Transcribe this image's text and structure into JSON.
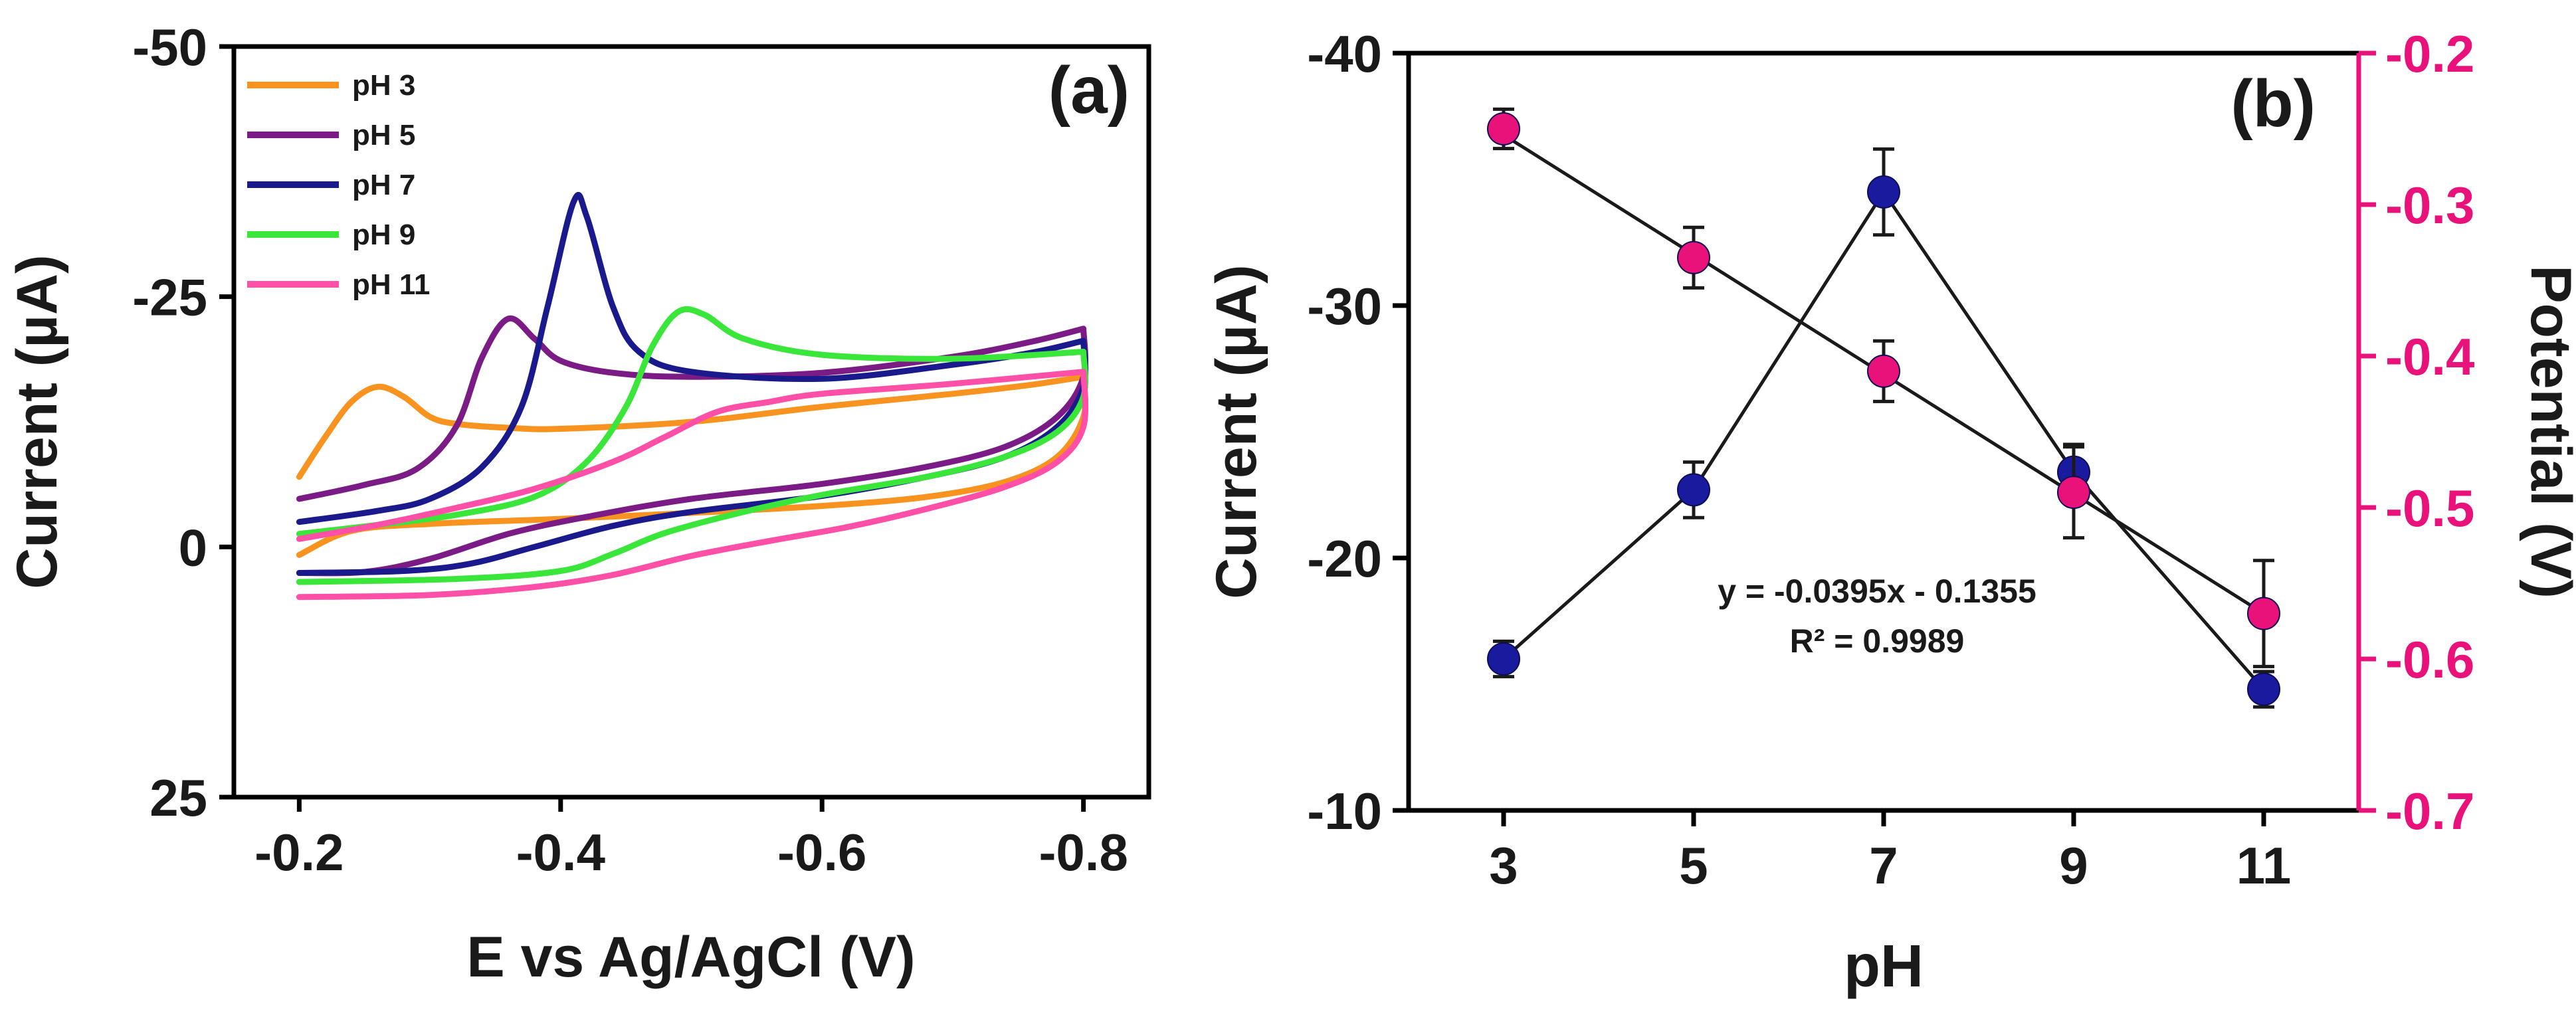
{
  "chart_data": [
    {
      "panel_label": "(a)",
      "type": "line",
      "xlabel": "E vs Ag/AgCl (V)",
      "ylabel": "Current (µA)",
      "xlim": [
        -0.15,
        -0.85
      ],
      "ylim": [
        25,
        -50
      ],
      "x_ticks": [
        "-0.2",
        "-0.4",
        "-0.6",
        "-0.8"
      ],
      "x_tick_values": [
        -0.2,
        -0.4,
        -0.6,
        -0.8
      ],
      "y_ticks": [
        "-50",
        "-25",
        "0",
        "25"
      ],
      "y_tick_values": [
        -50,
        -25,
        0,
        25
      ],
      "legend_position": "top-left",
      "series": [
        {
          "name": "pH 3",
          "color": "#F7931E",
          "forward": [
            [
              -0.2,
              -7
            ],
            [
              -0.22,
              -11
            ],
            [
              -0.24,
              -14.5
            ],
            [
              -0.26,
              -16
            ],
            [
              -0.28,
              -15
            ],
            [
              -0.3,
              -13
            ],
            [
              -0.32,
              -12.3
            ],
            [
              -0.36,
              -11.9
            ],
            [
              -0.4,
              -11.8
            ],
            [
              -0.5,
              -12.5
            ],
            [
              -0.6,
              -14
            ],
            [
              -0.7,
              -15.3
            ],
            [
              -0.76,
              -16.2
            ],
            [
              -0.8,
              -17
            ]
          ],
          "reverse": [
            [
              -0.8,
              -17
            ],
            [
              -0.8,
              -13
            ],
            [
              -0.78,
              -9
            ],
            [
              -0.74,
              -6.5
            ],
            [
              -0.68,
              -5
            ],
            [
              -0.6,
              -4.1
            ],
            [
              -0.5,
              -3.4
            ],
            [
              -0.4,
              -2.8
            ],
            [
              -0.3,
              -2.3
            ],
            [
              -0.24,
              -1.6
            ],
            [
              -0.2,
              0.8
            ]
          ]
        },
        {
          "name": "pH 5",
          "color": "#7B1C86",
          "forward": [
            [
              -0.2,
              -4.8
            ],
            [
              -0.25,
              -6.2
            ],
            [
              -0.29,
              -7.8
            ],
            [
              -0.32,
              -12
            ],
            [
              -0.34,
              -19
            ],
            [
              -0.36,
              -22.8
            ],
            [
              -0.38,
              -20.8
            ],
            [
              -0.4,
              -18.6
            ],
            [
              -0.44,
              -17.4
            ],
            [
              -0.5,
              -17
            ],
            [
              -0.6,
              -17.4
            ],
            [
              -0.7,
              -19
            ],
            [
              -0.76,
              -20.5
            ],
            [
              -0.8,
              -21.8
            ]
          ],
          "reverse": [
            [
              -0.8,
              -21.8
            ],
            [
              -0.8,
              -17
            ],
            [
              -0.78,
              -13
            ],
            [
              -0.74,
              -10
            ],
            [
              -0.68,
              -8
            ],
            [
              -0.6,
              -6.3
            ],
            [
              -0.5,
              -4.8
            ],
            [
              -0.42,
              -3
            ],
            [
              -0.36,
              -1.3
            ],
            [
              -0.3,
              1.2
            ],
            [
              -0.25,
              2.5
            ],
            [
              -0.2,
              2.6
            ]
          ]
        },
        {
          "name": "pH 7",
          "color": "#1A1A8C",
          "forward": [
            [
              -0.2,
              -2.5
            ],
            [
              -0.26,
              -3.6
            ],
            [
              -0.3,
              -4.8
            ],
            [
              -0.34,
              -8
            ],
            [
              -0.37,
              -14
            ],
            [
              -0.39,
              -24
            ],
            [
              -0.41,
              -34.5
            ],
            [
              -0.42,
              -33
            ],
            [
              -0.44,
              -24
            ],
            [
              -0.46,
              -19.5
            ],
            [
              -0.5,
              -17.5
            ],
            [
              -0.6,
              -16.8
            ],
            [
              -0.7,
              -18.2
            ],
            [
              -0.76,
              -19.4
            ],
            [
              -0.8,
              -20.6
            ]
          ],
          "reverse": [
            [
              -0.8,
              -20.6
            ],
            [
              -0.8,
              -16
            ],
            [
              -0.78,
              -12
            ],
            [
              -0.74,
              -9
            ],
            [
              -0.68,
              -7
            ],
            [
              -0.6,
              -5.1
            ],
            [
              -0.5,
              -3.5
            ],
            [
              -0.44,
              -2.1
            ],
            [
              -0.38,
              0
            ],
            [
              -0.33,
              1.7
            ],
            [
              -0.28,
              2.4
            ],
            [
              -0.2,
              2.6
            ]
          ]
        },
        {
          "name": "pH 9",
          "color": "#39E639",
          "forward": [
            [
              -0.2,
              -1.3
            ],
            [
              -0.26,
              -2.2
            ],
            [
              -0.32,
              -3.2
            ],
            [
              -0.38,
              -5
            ],
            [
              -0.42,
              -8.5
            ],
            [
              -0.45,
              -14
            ],
            [
              -0.47,
              -20
            ],
            [
              -0.49,
              -23.5
            ],
            [
              -0.51,
              -23.2
            ],
            [
              -0.54,
              -20.8
            ],
            [
              -0.6,
              -19.2
            ],
            [
              -0.7,
              -18.8
            ],
            [
              -0.8,
              -19.5
            ]
          ],
          "reverse": [
            [
              -0.8,
              -19.5
            ],
            [
              -0.8,
              -15
            ],
            [
              -0.78,
              -11.5
            ],
            [
              -0.74,
              -9
            ],
            [
              -0.68,
              -7
            ],
            [
              -0.6,
              -5.2
            ],
            [
              -0.54,
              -3.5
            ],
            [
              -0.48,
              -1.4
            ],
            [
              -0.44,
              0.7
            ],
            [
              -0.4,
              2.4
            ],
            [
              -0.32,
              3.2
            ],
            [
              -0.2,
              3.5
            ]
          ]
        },
        {
          "name": "pH 11",
          "color": "#FF4FA7",
          "forward": [
            [
              -0.2,
              -0.8
            ],
            [
              -0.26,
              -2.2
            ],
            [
              -0.32,
              -3.9
            ],
            [
              -0.38,
              -5.8
            ],
            [
              -0.44,
              -8.5
            ],
            [
              -0.48,
              -11
            ],
            [
              -0.52,
              -13.5
            ],
            [
              -0.56,
              -14.5
            ],
            [
              -0.6,
              -15.3
            ],
            [
              -0.7,
              -16.3
            ],
            [
              -0.8,
              -17.5
            ]
          ],
          "reverse": [
            [
              -0.8,
              -17.5
            ],
            [
              -0.8,
              -12
            ],
            [
              -0.78,
              -8.5
            ],
            [
              -0.74,
              -6
            ],
            [
              -0.68,
              -3.8
            ],
            [
              -0.62,
              -2
            ],
            [
              -0.56,
              -0.6
            ],
            [
              -0.5,
              0.9
            ],
            [
              -0.44,
              2.8
            ],
            [
              -0.38,
              4
            ],
            [
              -0.3,
              4.8
            ],
            [
              -0.2,
              5
            ]
          ]
        }
      ]
    },
    {
      "panel_label": "(b)",
      "type": "scatter",
      "xlabel": "pH",
      "ylabel": "Current (µA)",
      "ylabel_right": "Potential (V)",
      "xlim": [
        2,
        12
      ],
      "ylim": [
        -10,
        -40
      ],
      "ylim_right": [
        -0.7,
        -0.2
      ],
      "x_ticks": [
        "3",
        "5",
        "7",
        "9",
        "11"
      ],
      "x_tick_values": [
        3,
        5,
        7,
        9,
        11
      ],
      "y_ticks": [
        "-10",
        "-20",
        "-30",
        "-40"
      ],
      "y_tick_values": [
        -10,
        -20,
        -30,
        -40
      ],
      "y_ticks_right": [
        "-0.2",
        "-0.3",
        "-0.4",
        "-0.5",
        "-0.6",
        "-0.7"
      ],
      "y_tick_values_right": [
        -0.2,
        -0.3,
        -0.4,
        -0.5,
        -0.6,
        -0.7
      ],
      "right_axis_color": "#E8127A",
      "series": [
        {
          "name": "Current",
          "axis": "left",
          "color": "#1A1A9E",
          "connect": true,
          "x": [
            3,
            5,
            7,
            9,
            11
          ],
          "y": [
            -16,
            -22.7,
            -34.5,
            -23.4,
            -14.8
          ],
          "err": [
            0.7,
            1.1,
            1.7,
            1.1,
            0.7
          ]
        },
        {
          "name": "Potential",
          "axis": "right",
          "color": "#E8127A",
          "connect": false,
          "x": [
            3,
            5,
            7,
            9,
            11
          ],
          "y": [
            -0.25,
            -0.335,
            -0.41,
            -0.49,
            -0.57
          ],
          "err": [
            0.013,
            0.02,
            0.02,
            0.03,
            0.035
          ]
        }
      ],
      "fit": {
        "axis": "right",
        "slope": -0.0395,
        "intercept": -0.1355,
        "x_range": [
          3,
          11
        ],
        "color": "#1a1a1a"
      },
      "annotation": {
        "equation": "y = -0.0395x - 0.1355",
        "r_squared": "R² = 0.9989"
      }
    }
  ]
}
